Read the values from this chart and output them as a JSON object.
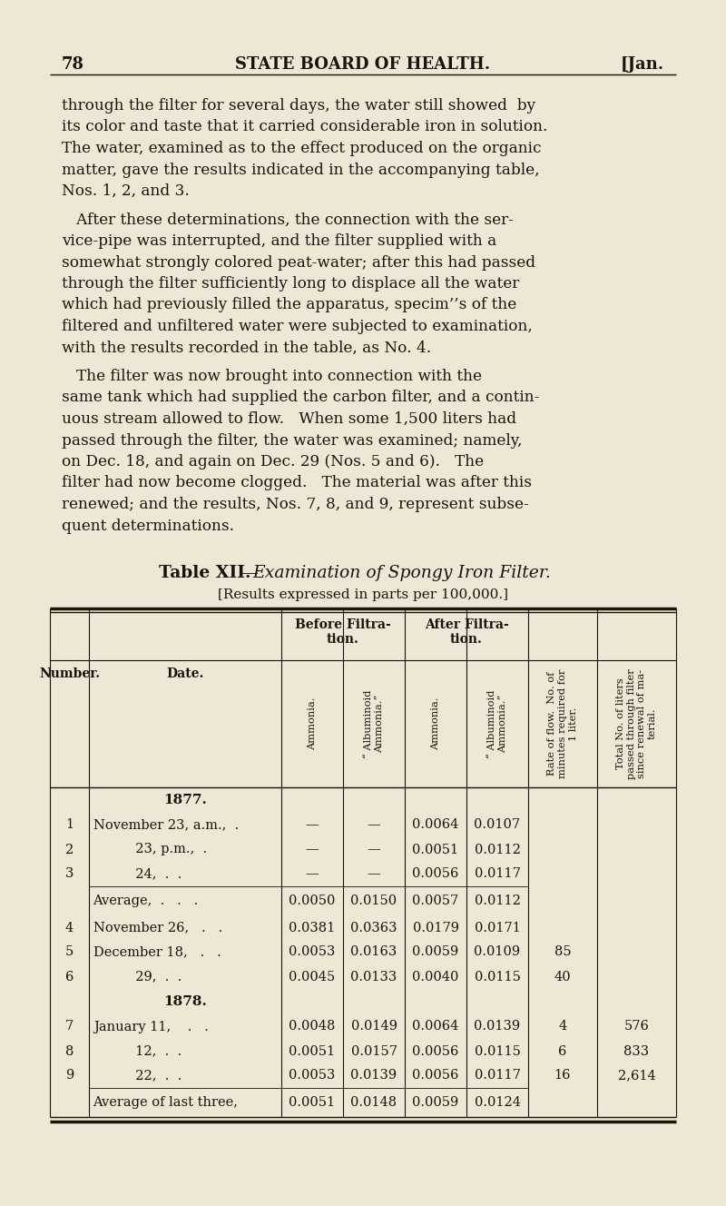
{
  "bg_color": "#ede8d5",
  "text_color": "#1a1208",
  "page_number": "78",
  "header_center": "STATE BOARD OF HEALTH.",
  "header_right": "[Jan.",
  "p1_lines": [
    "through the filter for several days, the water still showed  by",
    "its color and taste that it carried considerable iron in solution.",
    "The water, examined as to the effect produced on the organic",
    "matter, gave the results indicated in the accompanying table,",
    "Nos. 1, 2, and 3."
  ],
  "p2_lines": [
    "   After these determinations, the connection with the ser-",
    "vice-pipe was interrupted, and the filter supplied with a",
    "somewhat strongly colored peat-water; after this had passed",
    "through the filter sufficiently long to displace all the water",
    "which had previously filled the apparatus, specim’’s of the",
    "filtered and unfiltered water were subjected to examination,",
    "with the results recorded in the table, as No. 4."
  ],
  "p3_lines": [
    "   The filter was now brought into connection with the",
    "same tank which had supplied the carbon filter, and a contin-",
    "uous stream allowed to flow.   When some 1,500 liters had",
    "passed through the filter, the water was examined; namely,",
    "on Dec. 18, and again on Dec. 29 (Nos. 5 and 6).   The",
    "filter had now become clogged.   The material was after this",
    "renewed; and the results, Nos. 7, 8, and 9, represent subse-",
    "quent determinations."
  ],
  "table_title_roman": "Table XII.",
  "table_title_dash": " — ",
  "table_title_italic": "Examination of Spongy Iron Filter.",
  "table_subtitle": "[Results expressed in parts per 100,000.]",
  "rows": [
    {
      "num": "",
      "date": "1877.",
      "b_amm": "",
      "b_alb": "",
      "a_amm": "",
      "a_alb": "",
      "rate": "",
      "total": "",
      "is_year": true
    },
    {
      "num": "1",
      "date": "November 23, a.m.,  .",
      "b_amm": "—",
      "b_alb": "—",
      "a_amm": "0.0064",
      "a_alb": "0.0107",
      "rate": "",
      "total": ""
    },
    {
      "num": "2",
      "date": "          23, p.m.,  .",
      "b_amm": "—",
      "b_alb": "—",
      "a_amm": "0.0051",
      "a_alb": "0.0112",
      "rate": "",
      "total": ""
    },
    {
      "num": "3",
      "date": "          24,  .  .",
      "b_amm": "—",
      "b_alb": "—",
      "a_amm": "0.0056",
      "a_alb": "0.0117",
      "rate": "",
      "total": ""
    },
    {
      "num": "",
      "date": "Average,  .   .   .",
      "b_amm": "0.0050",
      "b_alb": "0.0150",
      "a_amm": "0.0057",
      "a_alb": "0.0112",
      "rate": "",
      "total": "",
      "is_avg": true
    },
    {
      "num": "4",
      "date": "November 26,   .   .",
      "b_amm": "0.0381",
      "b_alb": "0.0363",
      "a_amm": "0.0179",
      "a_alb": "0.0171",
      "rate": "",
      "total": ""
    },
    {
      "num": "5",
      "date": "December 18,   .   .",
      "b_amm": "0.0053",
      "b_alb": "0.0163",
      "a_amm": "0.0059",
      "a_alb": "0.0109",
      "rate": "85",
      "total": ""
    },
    {
      "num": "6",
      "date": "          29,  .  .",
      "b_amm": "0.0045",
      "b_alb": "0.0133",
      "a_amm": "0.0040",
      "a_alb": "0.0115",
      "rate": "40",
      "total": ""
    },
    {
      "num": "",
      "date": "1878.",
      "b_amm": "",
      "b_alb": "",
      "a_amm": "",
      "a_alb": "",
      "rate": "",
      "total": "",
      "is_year": true
    },
    {
      "num": "7",
      "date": "January 11,    .   .",
      "b_amm": "0.0048",
      "b_alb": "0.0149",
      "a_amm": "0.0064",
      "a_alb": "0.0139",
      "rate": "4",
      "total": "576"
    },
    {
      "num": "8",
      "date": "          12,  .  .",
      "b_amm": "0.0051",
      "b_alb": "0.0157",
      "a_amm": "0.0056",
      "a_alb": "0.0115",
      "rate": "6",
      "total": "833"
    },
    {
      "num": "9",
      "date": "          22,  .  .",
      "b_amm": "0.0053",
      "b_alb": "0.0139",
      "a_amm": "0.0056",
      "a_alb": "0.0117",
      "rate": "16",
      "total": "2,614"
    },
    {
      "num": "",
      "date": "Average of last three,",
      "b_amm": "0.0051",
      "b_alb": "0.0148",
      "a_amm": "0.0059",
      "a_alb": "0.0124",
      "rate": "",
      "total": "",
      "is_avg": true
    }
  ]
}
